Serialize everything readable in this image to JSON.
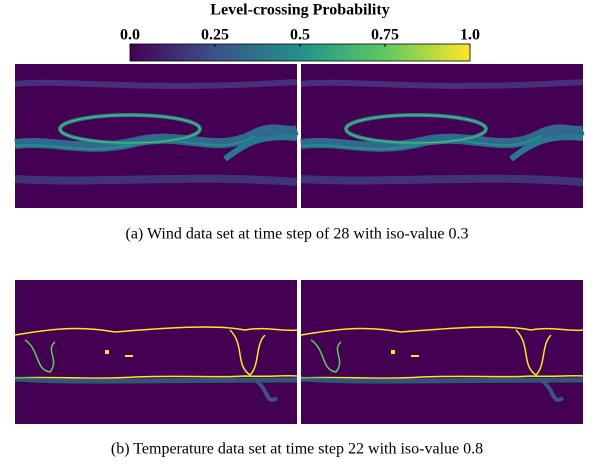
{
  "colorbar": {
    "title": "Level-crossing Probability",
    "range": [
      0,
      1
    ],
    "ticks": [
      {
        "value": 0,
        "label": "0.0"
      },
      0.25,
      0.5,
      0.75,
      {
        "value": 1,
        "label": "1.0"
      }
    ],
    "colors": [
      "#440154",
      "#3b528b",
      "#21918c",
      "#5ec962",
      "#fde725"
    ]
  },
  "panels": [
    {
      "caption": "(a)  Wind data set at time step of 28 with iso-value 0.3"
    },
    {
      "caption": "(b)  Temperature data set at time step 22 with iso-value 0.8"
    }
  ]
}
